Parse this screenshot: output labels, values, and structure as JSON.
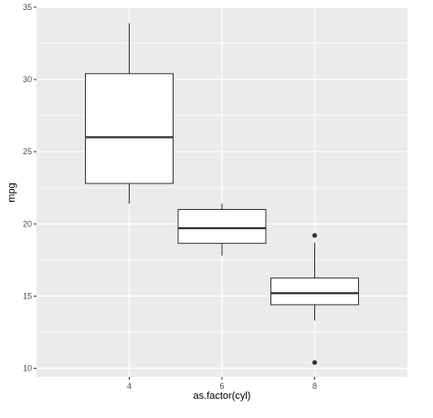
{
  "chart_data": {
    "type": "box",
    "xlabel": "as.factor(cyl)",
    "ylabel": "mpg",
    "ylim": [
      9.4,
      35
    ],
    "categories": [
      "4",
      "6",
      "8"
    ],
    "yticks": [
      "10",
      "15",
      "20",
      "25",
      "30",
      "35"
    ],
    "boxes": [
      {
        "category": "4",
        "whisker_low": 21.4,
        "q1": 22.8,
        "median": 26.0,
        "q3": 30.4,
        "whisker_high": 33.9,
        "outliers": []
      },
      {
        "category": "6",
        "whisker_low": 17.8,
        "q1": 18.65,
        "median": 19.7,
        "q3": 21.0,
        "whisker_high": 21.4,
        "outliers": []
      },
      {
        "category": "8",
        "whisker_low": 13.3,
        "q1": 14.4,
        "median": 15.2,
        "q3": 16.25,
        "whisker_high": 18.7,
        "outliers": [
          10.4,
          19.2
        ]
      }
    ],
    "grid": true,
    "legend": "none",
    "colors": {
      "panel": "#ebebeb",
      "grid": "#ffffff",
      "box_fill": "#ffffff",
      "box_line": "#333333",
      "tick_text": "#4d4d4d"
    }
  }
}
